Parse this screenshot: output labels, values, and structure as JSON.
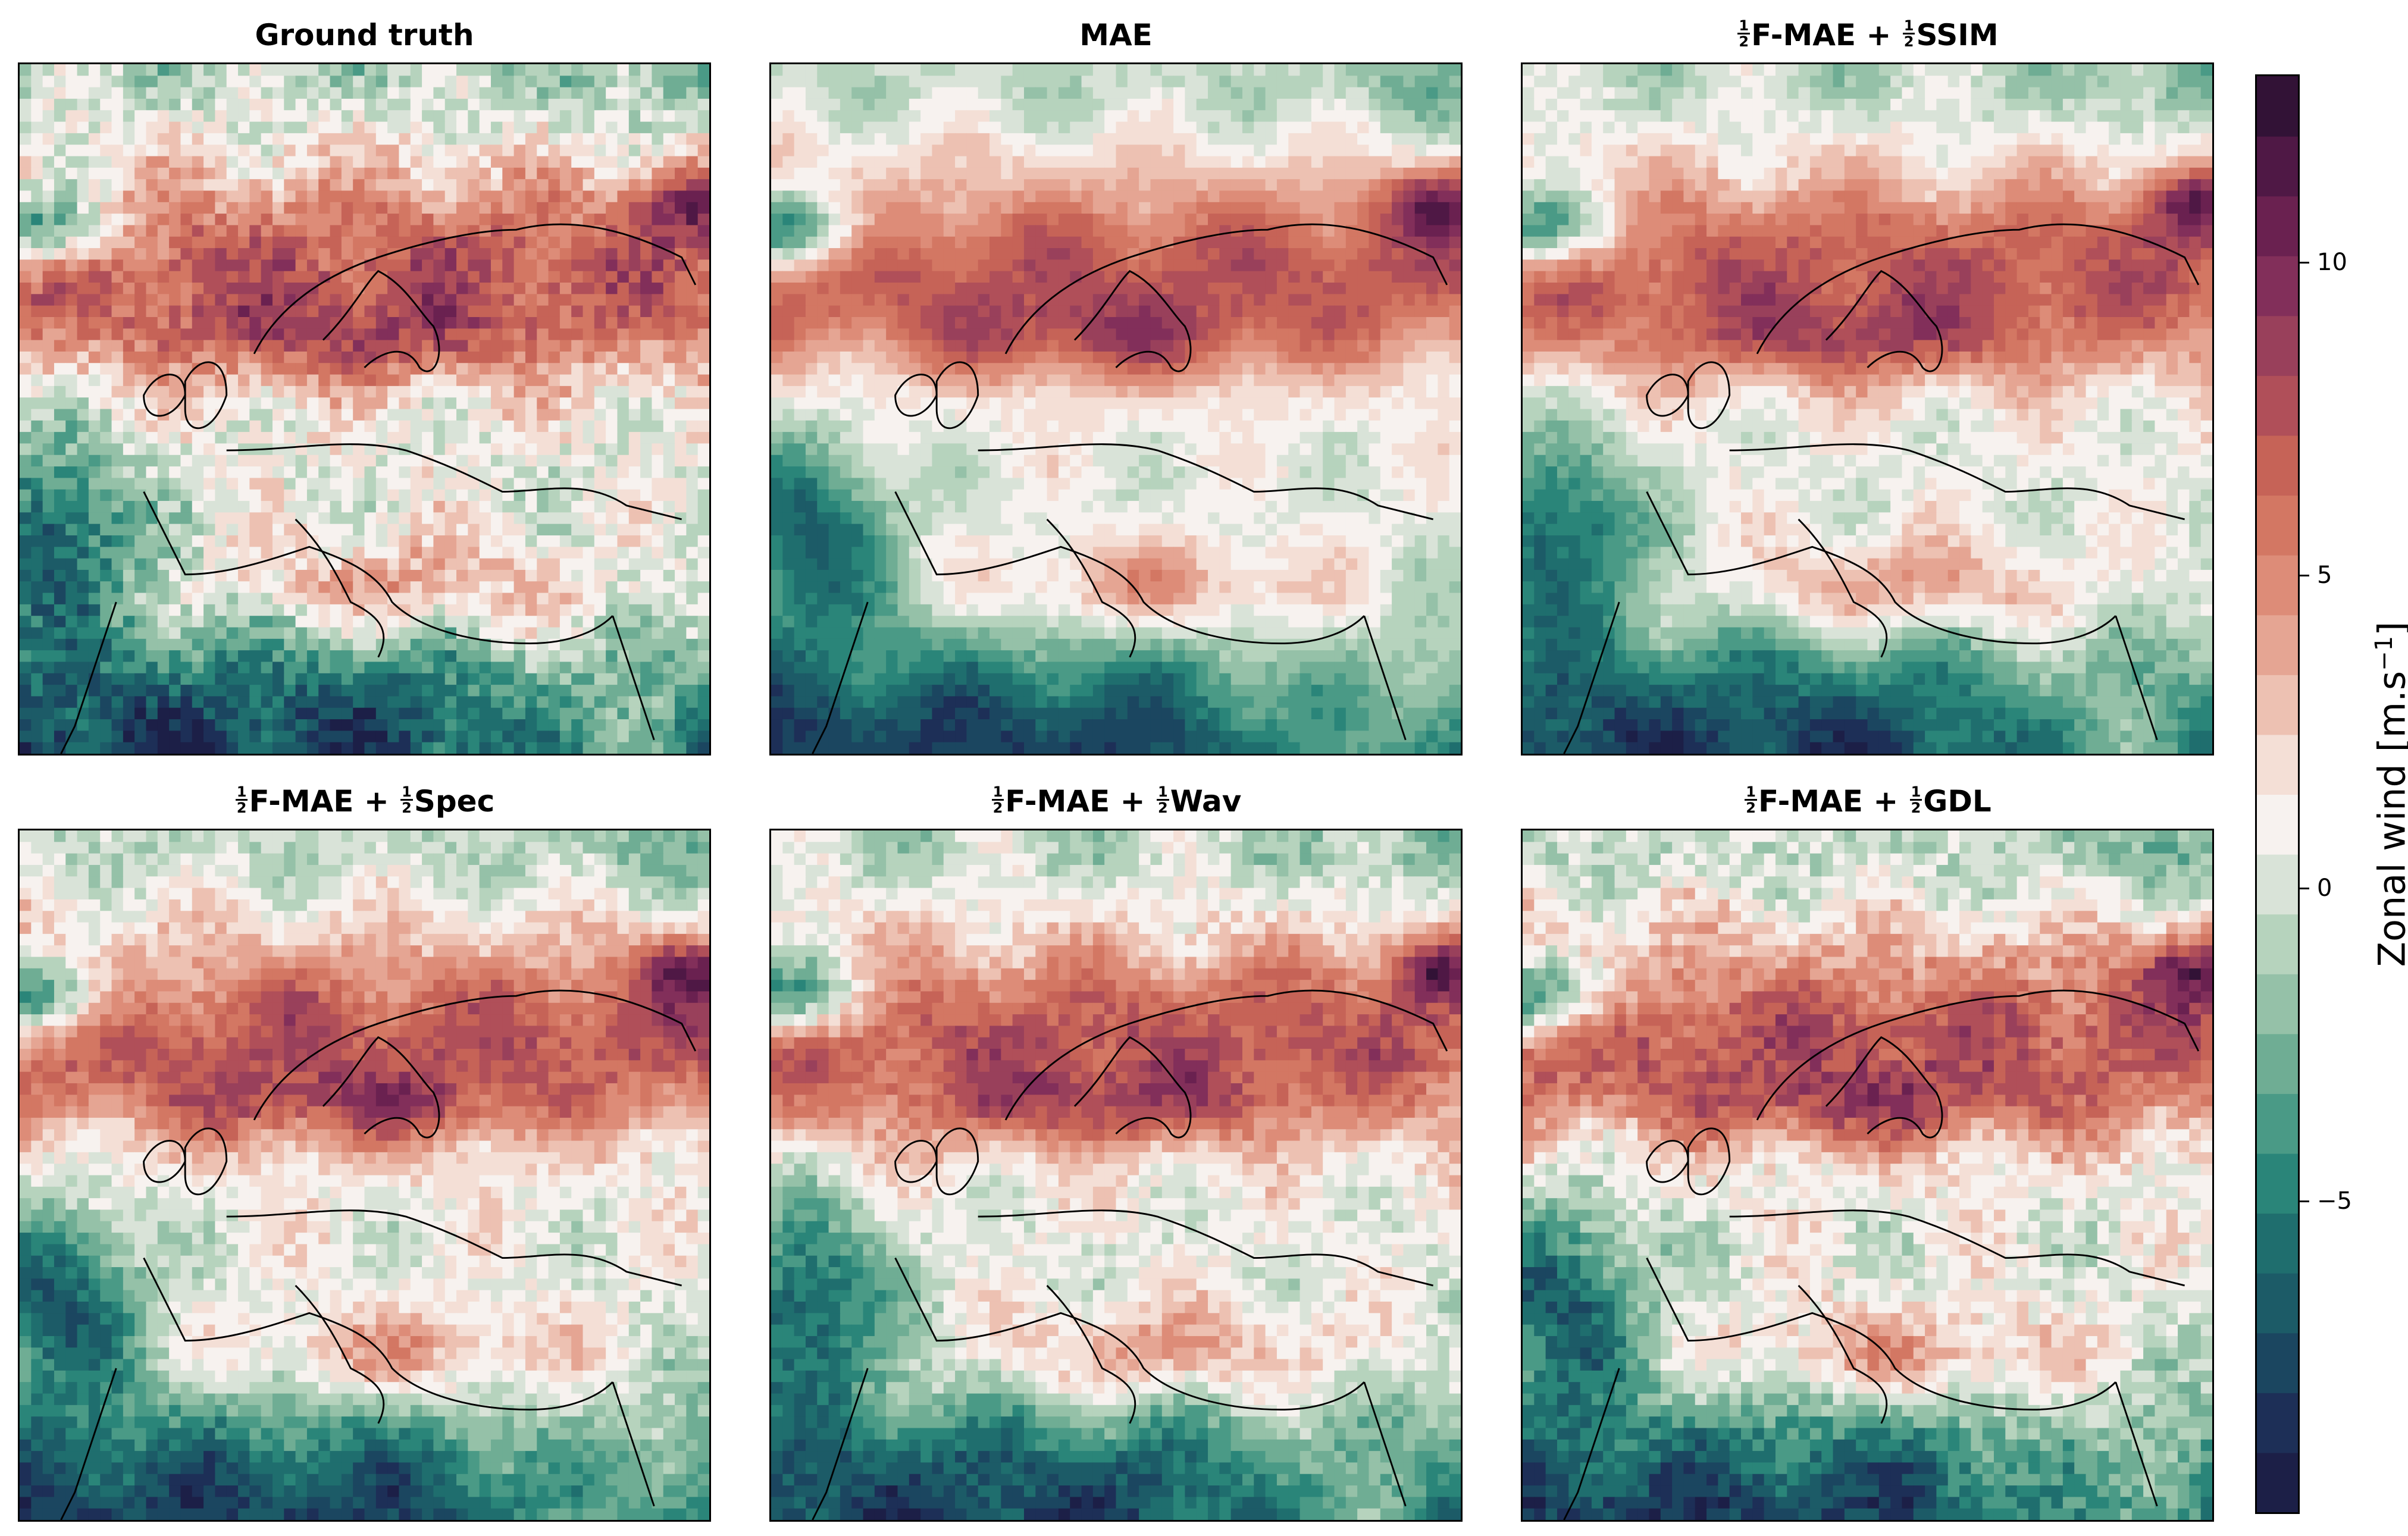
{
  "panels": [
    {
      "id": "ground-truth",
      "title": "Ground truth",
      "prefix_fraction": "",
      "suffix_fraction": ""
    },
    {
      "id": "mae",
      "title": "MAE",
      "prefix_fraction": "",
      "suffix_fraction": ""
    },
    {
      "id": "fmae-ssim",
      "title": "F-MAE + ",
      "title_end": "SSIM",
      "prefix_fraction": "1/2",
      "suffix_fraction": "1/2"
    },
    {
      "id": "fmae-spec",
      "title": "F-MAE + ",
      "title_end": "Spec",
      "prefix_fraction": "1/2",
      "suffix_fraction": "1/2"
    },
    {
      "id": "fmae-wav",
      "title": "F-MAE + ",
      "title_end": "Wav",
      "prefix_fraction": "1/2",
      "suffix_fraction": "1/2"
    },
    {
      "id": "fmae-gdl",
      "title": "F-MAE + ",
      "title_end": "GDL",
      "prefix_fraction": "1/2",
      "suffix_fraction": "1/2"
    }
  ],
  "fraction": {
    "num": "1",
    "den": "2"
  },
  "chart_data": {
    "type": "heatmap",
    "colorbar": {
      "label": "Zonal wind [m.s",
      "label_superscript": "−1",
      "label_end": "]",
      "min": -10,
      "max": 13,
      "ticks": [
        {
          "value": 10,
          "label": "10"
        },
        {
          "value": 5,
          "label": "5"
        },
        {
          "value": 0,
          "label": "0"
        },
        {
          "value": -5,
          "label": "−5"
        }
      ],
      "colors": [
        "#1c1f47",
        "#1d2f57",
        "#1b4660",
        "#1c5b67",
        "#1f6e6e",
        "#2a8579",
        "#4a9a86",
        "#6fad94",
        "#95c1a8",
        "#b6d3bd",
        "#d9e3d8",
        "#f7f2ef",
        "#f4dfd6",
        "#edc1b2",
        "#e5a593",
        "#dd8c78",
        "#d37763",
        "#c66357",
        "#b04f59",
        "#99405b",
        "#822f5a",
        "#6a2150",
        "#4f1845",
        "#321236"
      ]
    }
  },
  "colors": {
    "land_line": "#000000",
    "border_line": "#888888"
  }
}
